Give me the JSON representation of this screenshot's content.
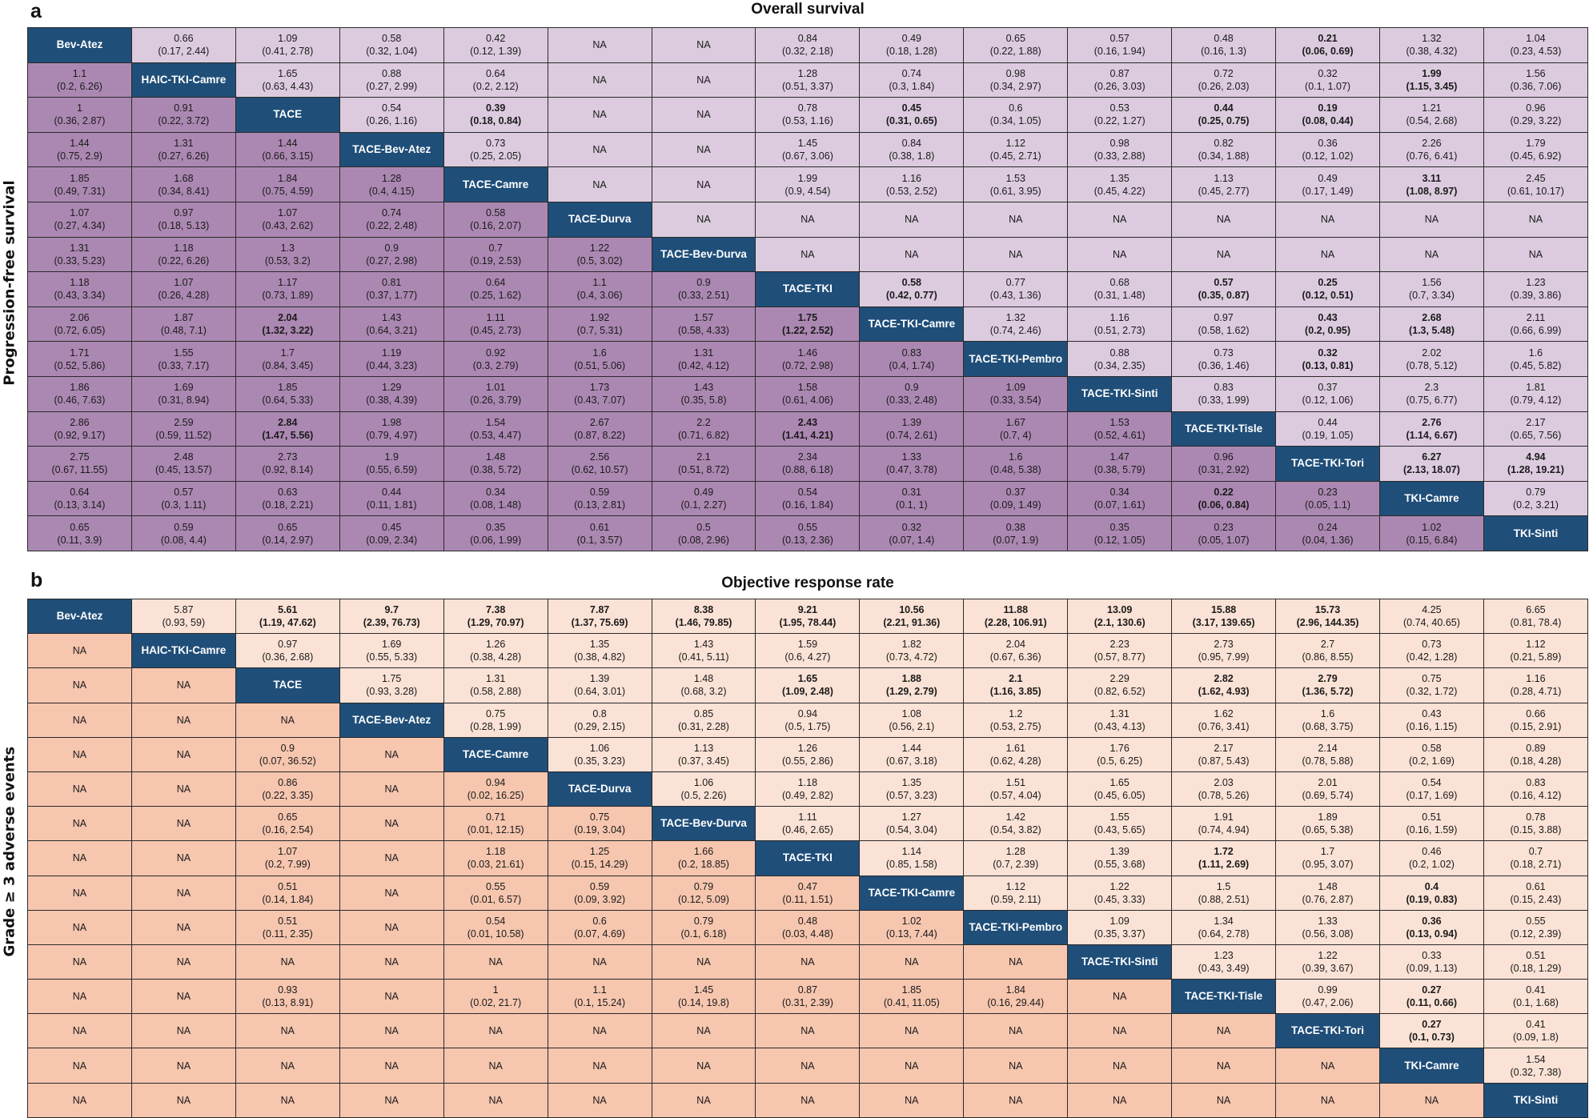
{
  "chart_data": [
    {
      "type": "table",
      "panel": "a",
      "title": "Overall survival",
      "ylabel": "Progression-free survival",
      "upper_triangle": "Overall survival",
      "lower_triangle": "Progression-free survival",
      "colors": {
        "diagonal": "#1f4e79",
        "upper": "#dccbdf",
        "lower": "#ab88b2"
      },
      "treatments": [
        "Bev-Atez",
        "HAIC-TKI-Camre",
        "TACE",
        "TACE-Bev-Atez",
        "TACE-Camre",
        "TACE-Durva",
        "TACE-Bev-Durva",
        "TACE-TKI",
        "TACE-TKI-Camre",
        "TACE-TKI-Pembro",
        "TACE-TKI-Sinti",
        "TACE-TKI-Tisle",
        "TACE-TKI-Tori",
        "TKI-Camre",
        "TKI-Sinti"
      ],
      "rows": [
        [
          "D",
          "0.66|(0.17, 2.44)",
          "1.09|(0.41, 2.78)",
          "0.58|(0.32, 1.04)",
          "0.42|(0.12, 1.39)",
          "NA",
          "NA",
          "0.84|(0.32, 2.18)",
          "0.49|(0.18, 1.28)",
          "0.65|(0.22, 1.88)",
          "0.57|(0.16, 1.94)",
          "0.48|(0.16, 1.3)",
          "*0.21|(0.06, 0.69)",
          "1.32|(0.38, 4.32)",
          "1.04|(0.23, 4.53)"
        ],
        [
          "1.1|(0.2, 6.26)",
          "D",
          "1.65|(0.63, 4.43)",
          "0.88|(0.27, 2.99)",
          "0.64|(0.2, 2.12)",
          "NA",
          "NA",
          "1.28|(0.51, 3.37)",
          "0.74|(0.3, 1.84)",
          "0.98|(0.34, 2.97)",
          "0.87|(0.26, 3.03)",
          "0.72|(0.26, 2.03)",
          "0.32|(0.1, 1.07)",
          "*1.99|(1.15, 3.45)",
          "1.56|(0.36, 7.06)"
        ],
        [
          "1|(0.36, 2.87)",
          "0.91|(0.22, 3.72)",
          "D",
          "0.54|(0.26, 1.16)",
          "*0.39|(0.18, 0.84)",
          "NA",
          "NA",
          "0.78|(0.53, 1.16)",
          "*0.45|(0.31, 0.65)",
          "0.6|(0.34, 1.05)",
          "0.53|(0.22, 1.27)",
          "*0.44|(0.25, 0.75)",
          "*0.19|(0.08, 0.44)",
          "1.21|(0.54, 2.68)",
          "0.96|(0.29, 3.22)"
        ],
        [
          "1.44|(0.75, 2.9)",
          "1.31|(0.27, 6.26)",
          "1.44|(0.66, 3.15)",
          "D",
          "0.73|(0.25, 2.05)",
          "NA",
          "NA",
          "1.45|(0.67, 3.06)",
          "0.84|(0.38, 1.8)",
          "1.12|(0.45, 2.71)",
          "0.98|(0.33, 2.88)",
          "0.82|(0.34, 1.88)",
          "0.36|(0.12, 1.02)",
          "2.26|(0.76, 6.41)",
          "1.79|(0.45, 6.92)"
        ],
        [
          "1.85|(0.49, 7.31)",
          "1.68|(0.34, 8.41)",
          "1.84|(0.75, 4.59)",
          "1.28|(0.4, 4.15)",
          "D",
          "NA",
          "NA",
          "1.99|(0.9, 4.54)",
          "1.16|(0.53, 2.52)",
          "1.53|(0.61, 3.95)",
          "1.35|(0.45, 4.22)",
          "1.13|(0.45, 2.77)",
          "0.49|(0.17, 1.49)",
          "*3.11|(1.08, 8.97)",
          "2.45|(0.61, 10.17)"
        ],
        [
          "1.07|(0.27, 4.34)",
          "0.97|(0.18, 5.13)",
          "1.07|(0.43, 2.62)",
          "0.74|(0.22, 2.48)",
          "0.58|(0.16, 2.07)",
          "D",
          "NA",
          "NA",
          "NA",
          "NA",
          "NA",
          "NA",
          "NA",
          "NA",
          "NA"
        ],
        [
          "1.31|(0.33, 5.23)",
          "1.18|(0.22, 6.26)",
          "1.3|(0.53, 3.2)",
          "0.9|(0.27, 2.98)",
          "0.7|(0.19, 2.53)",
          "1.22|(0.5, 3.02)",
          "D",
          "NA",
          "NA",
          "NA",
          "NA",
          "NA",
          "NA",
          "NA",
          "NA"
        ],
        [
          "1.18|(0.43, 3.34)",
          "1.07|(0.26, 4.28)",
          "1.17|(0.73, 1.89)",
          "0.81|(0.37, 1.77)",
          "0.64|(0.25, 1.62)",
          "1.1|(0.4, 3.06)",
          "0.9|(0.33, 2.51)",
          "D",
          "*0.58|(0.42, 0.77)",
          "0.77|(0.43, 1.36)",
          "0.68|(0.31, 1.48)",
          "*0.57|(0.35, 0.87)",
          "*0.25|(0.12, 0.51)",
          "1.56|(0.7, 3.34)",
          "1.23|(0.39, 3.86)"
        ],
        [
          "2.06|(0.72, 6.05)",
          "1.87|(0.48, 7.1)",
          "*2.04|(1.32, 3.22)",
          "1.43|(0.64, 3.21)",
          "1.11|(0.45, 2.73)",
          "1.92|(0.7, 5.31)",
          "1.57|(0.58, 4.33)",
          "*1.75|(1.22, 2.52)",
          "D",
          "1.32|(0.74, 2.46)",
          "1.16|(0.51, 2.73)",
          "0.97|(0.58, 1.62)",
          "*0.43|(0.2, 0.95)",
          "*2.68|(1.3, 5.48)",
          "2.11|(0.66, 6.99)"
        ],
        [
          "1.71|(0.52, 5.86)",
          "1.55|(0.33, 7.17)",
          "1.7|(0.84, 3.45)",
          "1.19|(0.44, 3.23)",
          "0.92|(0.3, 2.79)",
          "1.6|(0.51, 5.06)",
          "1.31|(0.42, 4.12)",
          "1.46|(0.72, 2.98)",
          "0.83|(0.4, 1.74)",
          "D",
          "0.88|(0.34, 2.35)",
          "0.73|(0.36, 1.46)",
          "*0.32|(0.13, 0.81)",
          "2.02|(0.78, 5.12)",
          "1.6|(0.45, 5.82)"
        ],
        [
          "1.86|(0.46, 7.63)",
          "1.69|(0.31, 8.94)",
          "1.85|(0.64, 5.33)",
          "1.29|(0.38, 4.39)",
          "1.01|(0.26, 3.79)",
          "1.73|(0.43, 7.07)",
          "1.43|(0.35, 5.8)",
          "1.58|(0.61, 4.06)",
          "0.9|(0.33, 2.48)",
          "1.09|(0.33, 3.54)",
          "D",
          "0.83|(0.33, 1.99)",
          "0.37|(0.12, 1.06)",
          "2.3|(0.75, 6.77)",
          "1.81|(0.79, 4.12)"
        ],
        [
          "2.86|(0.92, 9.17)",
          "2.59|(0.59, 11.52)",
          "*2.84|(1.47, 5.56)",
          "1.98|(0.79, 4.97)",
          "1.54|(0.53, 4.47)",
          "2.67|(0.87, 8.22)",
          "2.2|(0.71, 6.82)",
          "*2.43|(1.41, 4.21)",
          "1.39|(0.74, 2.61)",
          "1.67|(0.7, 4)",
          "1.53|(0.52, 4.61)",
          "D",
          "0.44|(0.19, 1.05)",
          "*2.76|(1.14, 6.67)",
          "2.17|(0.65, 7.56)"
        ],
        [
          "2.75|(0.67, 11.55)",
          "2.48|(0.45, 13.57)",
          "2.73|(0.92, 8.14)",
          "1.9|(0.55, 6.59)",
          "1.48|(0.38, 5.72)",
          "2.56|(0.62, 10.57)",
          "2.1|(0.51, 8.72)",
          "2.34|(0.88, 6.18)",
          "1.33|(0.47, 3.78)",
          "1.6|(0.48, 5.38)",
          "1.47|(0.38, 5.79)",
          "0.96|(0.31, 2.92)",
          "D",
          "*6.27|(2.13, 18.07)",
          "*4.94|(1.28, 19.21)"
        ],
        [
          "0.64|(0.13, 3.14)",
          "0.57|(0.3, 1.11)",
          "0.63|(0.18, 2.21)",
          "0.44|(0.11, 1.81)",
          "0.34|(0.08, 1.48)",
          "0.59|(0.13, 2.81)",
          "0.49|(0.1, 2.27)",
          "0.54|(0.16, 1.84)",
          "0.31|(0.1, 1)",
          "0.37|(0.09, 1.49)",
          "0.34|(0.07, 1.61)",
          "*0.22|(0.06, 0.84)",
          "0.23|(0.05, 1.1)",
          "D",
          "0.79|(0.2, 3.21)"
        ],
        [
          "0.65|(0.11, 3.9)",
          "0.59|(0.08, 4.4)",
          "0.65|(0.14, 2.97)",
          "0.45|(0.09, 2.34)",
          "0.35|(0.06, 1.99)",
          "0.61|(0.1, 3.57)",
          "0.5|(0.08, 2.96)",
          "0.55|(0.13, 2.36)",
          "0.32|(0.07, 1.4)",
          "0.38|(0.07, 1.9)",
          "0.35|(0.12, 1.05)",
          "0.23|(0.05, 1.07)",
          "0.24|(0.04, 1.36)",
          "1.02|(0.15, 6.84)",
          "D"
        ]
      ]
    },
    {
      "type": "table",
      "panel": "b",
      "title": "Objective response rate",
      "ylabel": "Grade ≥ 3 adverse events",
      "upper_triangle": "Objective response rate",
      "lower_triangle": "Grade ≥ 3 adverse events",
      "colors": {
        "diagonal": "#1f4e79",
        "upper": "#fbe2d6",
        "lower": "#f6c6af"
      },
      "treatments": [
        "Bev-Atez",
        "HAIC-TKI-Camre",
        "TACE",
        "TACE-Bev-Atez",
        "TACE-Camre",
        "TACE-Durva",
        "TACE-Bev-Durva",
        "TACE-TKI",
        "TACE-TKI-Camre",
        "TACE-TKI-Pembro",
        "TACE-TKI-Sinti",
        "TACE-TKI-Tisle",
        "TACE-TKI-Tori",
        "TKI-Camre",
        "TKI-Sinti"
      ],
      "rows": [
        [
          "D",
          "5.87|(0.93, 59)",
          "*5.61|(1.19, 47.62)",
          "*9.7|(2.39, 76.73)",
          "*7.38|(1.29, 70.97)",
          "*7.87|(1.37, 75.69)",
          "*8.38|(1.46, 79.85)",
          "*9.21|(1.95, 78.44)",
          "*10.56|(2.21, 91.36)",
          "*11.88|(2.28, 106.91)",
          "*13.09|(2.1, 130.6)",
          "*15.88|(3.17, 139.65)",
          "*15.73|(2.96, 144.35)",
          "4.25|(0.74, 40.65)",
          "6.65|(0.81, 78.4)"
        ],
        [
          "NA",
          "D",
          "0.97|(0.36, 2.68)",
          "1.69|(0.55, 5.33)",
          "1.26|(0.38, 4.28)",
          "1.35|(0.38, 4.82)",
          "1.43|(0.41, 5.11)",
          "1.59|(0.6, 4.27)",
          "1.82|(0.73, 4.72)",
          "2.04|(0.67, 6.36)",
          "2.23|(0.57, 8.77)",
          "2.73|(0.95, 7.99)",
          "2.7|(0.86, 8.55)",
          "0.73|(0.42, 1.28)",
          "1.12|(0.21, 5.89)"
        ],
        [
          "NA",
          "NA",
          "D",
          "1.75|(0.93, 3.28)",
          "1.31|(0.58, 2.88)",
          "1.39|(0.64, 3.01)",
          "1.48|(0.68, 3.2)",
          "*1.65|(1.09, 2.48)",
          "*1.88|(1.29, 2.79)",
          "*2.1|(1.16, 3.85)",
          "2.29|(0.82, 6.52)",
          "*2.82|(1.62, 4.93)",
          "*2.79|(1.36, 5.72)",
          "0.75|(0.32, 1.72)",
          "1.16|(0.28, 4.71)"
        ],
        [
          "NA",
          "NA",
          "NA",
          "D",
          "0.75|(0.28, 1.99)",
          "0.8|(0.29, 2.15)",
          "0.85|(0.31, 2.28)",
          "0.94|(0.5, 1.75)",
          "1.08|(0.56, 2.1)",
          "1.2|(0.53, 2.75)",
          "1.31|(0.43, 4.13)",
          "1.62|(0.76, 3.41)",
          "1.6|(0.68, 3.75)",
          "0.43|(0.16, 1.15)",
          "0.66|(0.15, 2.91)"
        ],
        [
          "NA",
          "NA",
          "0.9|(0.07, 36.52)",
          "NA",
          "D",
          "1.06|(0.35, 3.23)",
          "1.13|(0.37, 3.45)",
          "1.26|(0.55, 2.86)",
          "1.44|(0.67, 3.18)",
          "1.61|(0.62, 4.28)",
          "1.76|(0.5, 6.25)",
          "2.17|(0.87, 5.43)",
          "2.14|(0.78, 5.88)",
          "0.58|(0.2, 1.69)",
          "0.89|(0.18, 4.28)"
        ],
        [
          "NA",
          "NA",
          "0.86|(0.22, 3.35)",
          "NA",
          "0.94|(0.02, 16.25)",
          "D",
          "1.06|(0.5, 2.26)",
          "1.18|(0.49, 2.82)",
          "1.35|(0.57, 3.23)",
          "1.51|(0.57, 4.04)",
          "1.65|(0.45, 6.05)",
          "2.03|(0.78, 5.26)",
          "2.01|(0.69, 5.74)",
          "0.54|(0.17, 1.69)",
          "0.83|(0.16, 4.12)"
        ],
        [
          "NA",
          "NA",
          "0.65|(0.16, 2.54)",
          "NA",
          "0.71|(0.01, 12.15)",
          "0.75|(0.19, 3.04)",
          "D",
          "1.11|(0.46, 2.65)",
          "1.27|(0.54, 3.04)",
          "1.42|(0.54, 3.82)",
          "1.55|(0.43, 5.65)",
          "1.91|(0.74, 4.94)",
          "1.89|(0.65, 5.38)",
          "0.51|(0.16, 1.59)",
          "0.78|(0.15, 3.88)"
        ],
        [
          "NA",
          "NA",
          "1.07|(0.2, 7.99)",
          "NA",
          "1.18|(0.03, 21.61)",
          "1.25|(0.15, 14.29)",
          "1.66|(0.2, 18.85)",
          "D",
          "1.14|(0.85, 1.58)",
          "1.28|(0.7, 2.39)",
          "1.39|(0.55, 3.68)",
          "*1.72|(1.11, 2.69)",
          "1.7|(0.95, 3.07)",
          "0.46|(0.2, 1.02)",
          "0.7|(0.18, 2.71)"
        ],
        [
          "NA",
          "NA",
          "0.51|(0.14, 1.84)",
          "NA",
          "0.55|(0.01, 6.57)",
          "0.59|(0.09, 3.92)",
          "0.79|(0.12, 5.09)",
          "0.47|(0.11, 1.51)",
          "D",
          "1.12|(0.59, 2.11)",
          "1.22|(0.45, 3.33)",
          "1.5|(0.88, 2.51)",
          "1.48|(0.76, 2.87)",
          "*0.4|(0.19, 0.83)",
          "0.61|(0.15, 2.43)"
        ],
        [
          "NA",
          "NA",
          "0.51|(0.11, 2.35)",
          "NA",
          "0.54|(0.01, 10.58)",
          "0.6|(0.07, 4.69)",
          "0.79|(0.1, 6.18)",
          "0.48|(0.03, 4.48)",
          "1.02|(0.13, 7.44)",
          "D",
          "1.09|(0.35, 3.37)",
          "1.34|(0.64, 2.78)",
          "1.33|(0.56, 3.08)",
          "*0.36|(0.13, 0.94)",
          "0.55|(0.12, 2.39)"
        ],
        [
          "NA",
          "NA",
          "NA",
          "NA",
          "NA",
          "NA",
          "NA",
          "NA",
          "NA",
          "NA",
          "D",
          "1.23|(0.43, 3.49)",
          "1.22|(0.39, 3.67)",
          "0.33|(0.09, 1.13)",
          "0.51|(0.18, 1.29)"
        ],
        [
          "NA",
          "NA",
          "0.93|(0.13, 8.91)",
          "NA",
          "1|(0.02, 21.7)",
          "1.1|(0.1, 15.24)",
          "1.45|(0.14, 19.8)",
          "0.87|(0.31, 2.39)",
          "1.85|(0.41, 11.05)",
          "1.84|(0.16, 29.44)",
          "NA",
          "D",
          "0.99|(0.47, 2.06)",
          "*0.27|(0.11, 0.66)",
          "0.41|(0.1, 1.68)"
        ],
        [
          "NA",
          "NA",
          "NA",
          "NA",
          "NA",
          "NA",
          "NA",
          "NA",
          "NA",
          "NA",
          "NA",
          "NA",
          "D",
          "*0.27|(0.1, 0.73)",
          "0.41|(0.09, 1.8)"
        ],
        [
          "NA",
          "NA",
          "NA",
          "NA",
          "NA",
          "NA",
          "NA",
          "NA",
          "NA",
          "NA",
          "NA",
          "NA",
          "NA",
          "D",
          "1.54|(0.32, 7.38)"
        ],
        [
          "NA",
          "NA",
          "NA",
          "NA",
          "NA",
          "NA",
          "NA",
          "NA",
          "NA",
          "NA",
          "NA",
          "NA",
          "NA",
          "NA",
          "D"
        ]
      ]
    }
  ],
  "panels": {
    "a": {
      "letter": "a",
      "title": "Overall survival",
      "side_label": "Progression-free survival"
    },
    "b": {
      "letter": "b",
      "title": "Objective response rate",
      "side_label": "Grade ≥ 3 adverse events"
    }
  }
}
